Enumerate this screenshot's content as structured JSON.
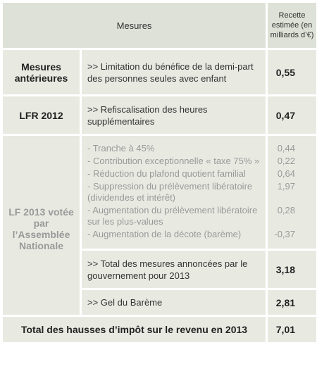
{
  "header": {
    "measures": "Mesures",
    "revenue": "Recette estimée (en milliards d’€)"
  },
  "rows": [
    {
      "group": "Mesures antérieures",
      "measure": ">> Limitation du bénéfice de la demi-part des personnes seules avec enfant",
      "value": "0,55"
    },
    {
      "group": "LFR 2012",
      "measure": ">> Refiscalisation des heures supplémentaires",
      "value": "0,47"
    }
  ],
  "lf2013": {
    "group": "LF 2013 votée par l’Assemblée Nationale",
    "items": [
      {
        "label": "- Tranche à 45%",
        "value": "0,44"
      },
      {
        "label": "- Contribution exceptionnelle « taxe 75% »",
        "value": "0,22"
      },
      {
        "label": "- Réduction du plafond quotient familial",
        "value": "0,64"
      },
      {
        "label": "- Suppression du prélèvement libératoire (dividendes et intérêt)",
        "value": "1,97"
      },
      {
        "label": "- Augmentation du prélèvement libératoire sur les plus-values",
        "value": "0,28"
      },
      {
        "label": "- Augmentation de la décote (barème)",
        "value": "-0,37"
      }
    ],
    "total": {
      "label": ">> Total des mesures annoncées par le gouvernement pour 2013",
      "value": "3,18"
    },
    "gel": {
      "label": ">> Gel du Barème",
      "value": "2,81"
    }
  },
  "footer": {
    "label": "Total des hausses d’impôt sur le revenu en 2013",
    "value": "7,01"
  }
}
